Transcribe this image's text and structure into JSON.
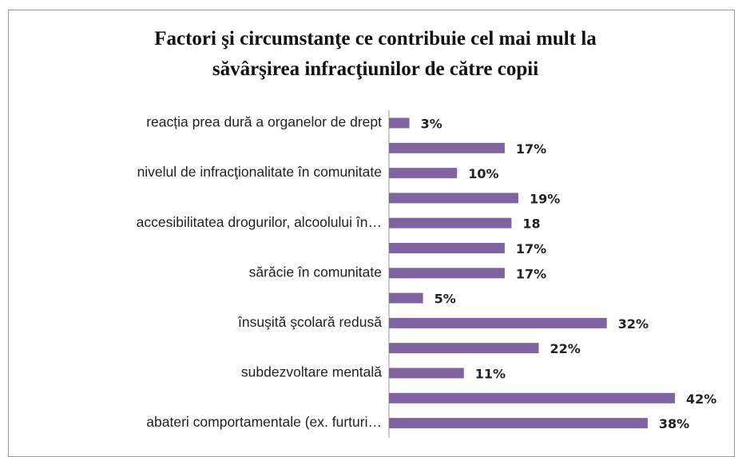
{
  "chart_data": {
    "type": "bar",
    "orientation": "horizontal",
    "title": "Factori şi circumstanţe ce contribuie cel mai mult la\nsăvârşirea infracţiunilor de către copii",
    "categories": [
      "reacția prea dură a organelor de drept",
      null,
      "nivelul de infracţionalitate în comunitate",
      null,
      "accesibilitatea drogurilor, alcoolului în…",
      null,
      "sărăcie în comunitate",
      null,
      "însuşită şcolară redusă",
      null,
      "subdezvoltare mentală",
      null,
      "abateri comportamentale (ex. furturi…"
    ],
    "values": [
      3,
      17,
      10,
      19,
      18,
      17,
      17,
      5,
      32,
      22,
      11,
      42,
      38
    ],
    "value_labels": [
      "3%",
      "17%",
      "10%",
      "19%",
      "18",
      "17%",
      "17%",
      "5%",
      "32%",
      "22%",
      "11%",
      "42%",
      "38%"
    ],
    "color": "#8064a2"
  }
}
